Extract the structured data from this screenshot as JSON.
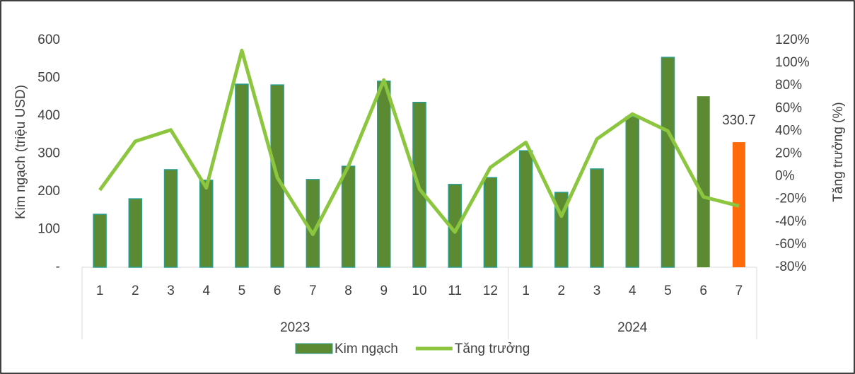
{
  "chart_data": {
    "type": "bar_line",
    "y_label": "Kim ngạch (triệu USD)",
    "y2_label": "Tăng trưởng (%)",
    "category_groups": [
      {
        "name": "2023",
        "categories": [
          "1",
          "2",
          "3",
          "4",
          "5",
          "6",
          "7",
          "8",
          "9",
          "10",
          "11",
          "12"
        ]
      },
      {
        "name": "2024",
        "categories": [
          "1",
          "2",
          "3",
          "4",
          "5",
          "6",
          "7"
        ]
      }
    ],
    "series": [
      {
        "name": "Kim ngạch",
        "type": "bar",
        "color": "#5b8a33",
        "edge_color": "#2a9d8f",
        "colors": [
          "#5b8a33",
          "#5b8a33",
          "#5b8a33",
          "#5b8a33",
          "#5b8a33",
          "#5b8a33",
          "#5b8a33",
          "#5b8a33",
          "#5b8a33",
          "#5b8a33",
          "#5b8a33",
          "#5b8a33",
          "#5b8a33",
          "#5b8a33",
          "#5b8a33",
          "#5b8a33",
          "#5b8a33",
          "#5b8a33",
          "#ff6a0a"
        ],
        "values": [
          140,
          181,
          258,
          230,
          484,
          482,
          232,
          267,
          492,
          436,
          219,
          237,
          308,
          198,
          260,
          398,
          555,
          452,
          330.7
        ],
        "value_labels": [
          null,
          null,
          null,
          null,
          null,
          null,
          null,
          null,
          null,
          null,
          null,
          null,
          null,
          null,
          null,
          null,
          null,
          null,
          "330.7"
        ]
      },
      {
        "name": "Tăng trưởng",
        "type": "line",
        "axis": "y2",
        "color": "#8cc63f",
        "values": [
          -12,
          31,
          41,
          -10,
          111,
          -1,
          -51,
          9,
          85,
          -11,
          -49,
          8,
          30,
          -35,
          33,
          55,
          40,
          -18,
          -26
        ]
      }
    ],
    "ylim": [
      0,
      600
    ],
    "yticks": [
      {
        "value": 0,
        "label": "-"
      },
      100,
      200,
      300,
      400,
      500,
      600
    ],
    "y2lim": [
      -80,
      120
    ],
    "y2ticks": [
      {
        "value": -80,
        "label": "-80%"
      },
      {
        "value": -60,
        "label": "-60%"
      },
      {
        "value": -40,
        "label": "-40%"
      },
      {
        "value": -20,
        "label": "-20%"
      },
      {
        "value": 0,
        "label": "0%"
      },
      {
        "value": 20,
        "label": "20%"
      },
      {
        "value": 40,
        "label": "40%"
      },
      {
        "value": 60,
        "label": "60%"
      },
      {
        "value": 80,
        "label": "80%"
      },
      {
        "value": 100,
        "label": "100%"
      },
      {
        "value": 120,
        "label": "120%"
      }
    ]
  }
}
